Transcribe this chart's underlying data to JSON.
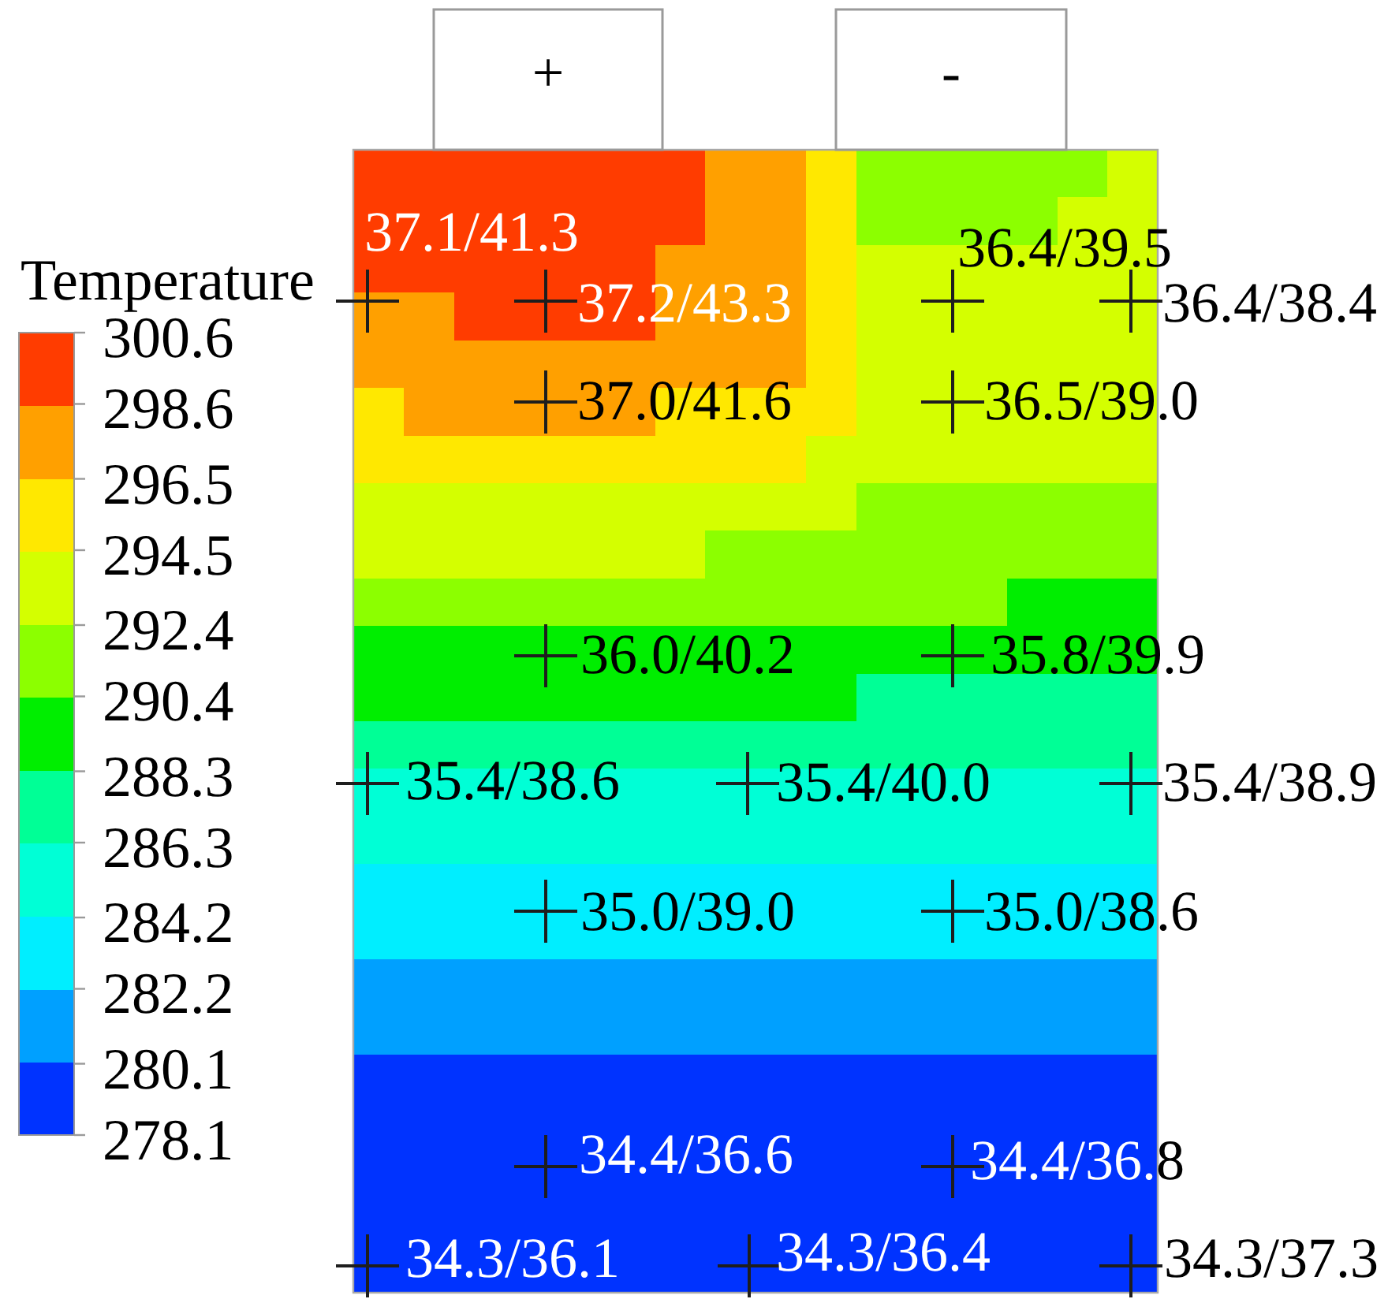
{
  "chart_data": {
    "type": "heatmap",
    "clabel": "Temperature",
    "categories": [
      null,
      null,
      null,
      null,
      null,
      null,
      null,
      null,
      null,
      null,
      null,
      null,
      null,
      null,
      null,
      null
    ],
    "y_categories": [
      null,
      null,
      null,
      null,
      null,
      null,
      null,
      null,
      null,
      null,
      null,
      null,
      null,
      null,
      null,
      null,
      null,
      null,
      null,
      null,
      null,
      null,
      null,
      null
    ],
    "cells": [
      [
        299.6,
        299.6,
        299.6,
        299.6,
        299.6,
        299.6,
        299.6,
        297.6,
        297.6,
        295.5,
        291.4,
        291.4,
        291.4,
        291.4,
        291.4,
        293.4
      ],
      [
        299.6,
        299.6,
        299.6,
        299.6,
        299.6,
        299.6,
        299.6,
        297.6,
        297.6,
        295.5,
        291.4,
        291.4,
        291.4,
        291.4,
        293.4,
        293.4
      ],
      [
        299.6,
        299.6,
        299.6,
        299.6,
        299.6,
        299.6,
        297.6,
        297.6,
        297.6,
        295.5,
        293.4,
        293.4,
        293.4,
        293.4,
        293.4,
        293.4
      ],
      [
        297.6,
        297.6,
        299.6,
        299.6,
        299.6,
        299.6,
        297.6,
        297.6,
        297.6,
        295.5,
        293.4,
        293.4,
        293.4,
        293.4,
        293.4,
        293.4
      ],
      [
        297.6,
        297.6,
        297.6,
        297.6,
        297.6,
        297.6,
        297.6,
        297.6,
        297.6,
        295.5,
        293.4,
        293.4,
        293.4,
        293.4,
        293.4,
        293.4
      ],
      [
        295.5,
        297.6,
        297.6,
        297.6,
        297.6,
        297.6,
        295.5,
        295.5,
        295.5,
        295.5,
        293.4,
        293.4,
        293.4,
        293.4,
        293.4,
        293.4
      ],
      [
        295.5,
        295.5,
        295.5,
        295.5,
        295.5,
        295.5,
        295.5,
        295.5,
        295.5,
        293.4,
        293.4,
        293.4,
        293.4,
        293.4,
        293.4,
        293.4
      ],
      [
        293.4,
        293.4,
        293.4,
        293.4,
        293.4,
        293.4,
        293.4,
        293.4,
        293.4,
        293.4,
        291.4,
        291.4,
        291.4,
        291.4,
        291.4,
        291.4
      ],
      [
        293.4,
        293.4,
        293.4,
        293.4,
        293.4,
        293.4,
        293.4,
        291.4,
        291.4,
        291.4,
        291.4,
        291.4,
        291.4,
        291.4,
        291.4,
        291.4
      ],
      [
        291.4,
        291.4,
        291.4,
        291.4,
        291.4,
        291.4,
        291.4,
        291.4,
        291.4,
        291.4,
        291.4,
        291.4,
        291.4,
        289.4,
        289.4,
        289.4
      ],
      [
        289.4,
        289.4,
        289.4,
        289.4,
        289.4,
        289.4,
        289.4,
        289.4,
        289.4,
        289.4,
        289.4,
        289.4,
        289.4,
        289.4,
        289.4,
        289.4
      ],
      [
        289.4,
        289.4,
        289.4,
        289.4,
        289.4,
        289.4,
        289.4,
        289.4,
        289.4,
        289.4,
        287.3,
        287.3,
        287.3,
        287.3,
        287.3,
        287.3
      ],
      [
        287.3,
        287.3,
        287.3,
        287.3,
        287.3,
        287.3,
        287.3,
        287.3,
        287.3,
        287.3,
        287.3,
        287.3,
        287.3,
        287.3,
        287.3,
        287.3
      ],
      [
        285.3,
        285.3,
        285.3,
        285.3,
        285.3,
        285.3,
        285.3,
        285.3,
        285.3,
        285.3,
        285.3,
        285.3,
        285.3,
        285.3,
        285.3,
        285.3
      ],
      [
        285.3,
        285.3,
        285.3,
        285.3,
        285.3,
        285.3,
        285.3,
        285.3,
        285.3,
        285.3,
        285.3,
        285.3,
        285.3,
        285.3,
        285.3,
        285.3
      ],
      [
        283.2,
        283.2,
        283.2,
        283.2,
        283.2,
        283.2,
        283.2,
        283.2,
        283.2,
        283.2,
        283.2,
        283.2,
        283.2,
        283.2,
        283.2,
        283.2
      ],
      [
        283.2,
        283.2,
        283.2,
        283.2,
        283.2,
        283.2,
        283.2,
        283.2,
        283.2,
        283.2,
        283.2,
        283.2,
        283.2,
        283.2,
        283.2,
        283.2
      ],
      [
        281.2,
        281.2,
        281.2,
        281.2,
        281.2,
        281.2,
        281.2,
        281.2,
        281.2,
        281.2,
        281.2,
        281.2,
        281.2,
        281.2,
        281.2,
        281.2
      ],
      [
        281.2,
        281.2,
        281.2,
        281.2,
        281.2,
        281.2,
        281.2,
        281.2,
        281.2,
        281.2,
        281.2,
        281.2,
        281.2,
        281.2,
        281.2,
        281.2
      ],
      [
        279.1,
        279.1,
        279.1,
        279.1,
        279.1,
        279.1,
        279.1,
        279.1,
        279.1,
        279.1,
        279.1,
        279.1,
        279.1,
        279.1,
        279.1,
        279.1
      ],
      [
        279.1,
        279.1,
        279.1,
        279.1,
        279.1,
        279.1,
        279.1,
        279.1,
        279.1,
        279.1,
        279.1,
        279.1,
        279.1,
        279.1,
        279.1,
        279.1
      ],
      [
        279.1,
        279.1,
        279.1,
        279.1,
        279.1,
        279.1,
        279.1,
        279.1,
        279.1,
        279.1,
        279.1,
        279.1,
        279.1,
        279.1,
        279.1,
        279.1
      ],
      [
        279.1,
        279.1,
        279.1,
        279.1,
        279.1,
        279.1,
        279.1,
        279.1,
        279.1,
        279.1,
        279.1,
        279.1,
        279.1,
        279.1,
        279.1,
        279.1
      ],
      [
        279.1,
        279.1,
        279.1,
        279.1,
        279.1,
        279.1,
        279.1,
        279.1,
        279.1,
        279.1,
        279.1,
        279.1,
        279.1,
        279.1,
        279.1,
        279.1
      ]
    ],
    "clim": [
      278.1,
      300.6
    ],
    "cticks": [
      278.1,
      280.1,
      282.2,
      284.2,
      286.3,
      288.3,
      290.4,
      292.4,
      294.5,
      296.5,
      298.6,
      300.6
    ],
    "colors": [
      "#0033ff",
      "#00a0ff",
      "#00eeff",
      "#00ffd6",
      "#00ff96",
      "#00ee00",
      "#8cff00",
      "#d4ff00",
      "#ffe800",
      "#ffa000",
      "#ff3c00"
    ],
    "annotations": [
      "+",
      "-",
      "37.1/41.3",
      "37.2/43.3",
      "36.4/39.5",
      "36.4/38.4",
      "37.0/41.6",
      "36.5/39.0",
      "36.0/40.2",
      "35.8/39.9",
      "35.4/38.6",
      "35.4/40.0",
      "35.4/38.9",
      "35.0/39.0",
      "35.0/38.6",
      "34.4/36.6",
      "34.4/36.8",
      "34.3/36.1",
      "34.3/36.4",
      "34.3/37.3"
    ]
  }
}
